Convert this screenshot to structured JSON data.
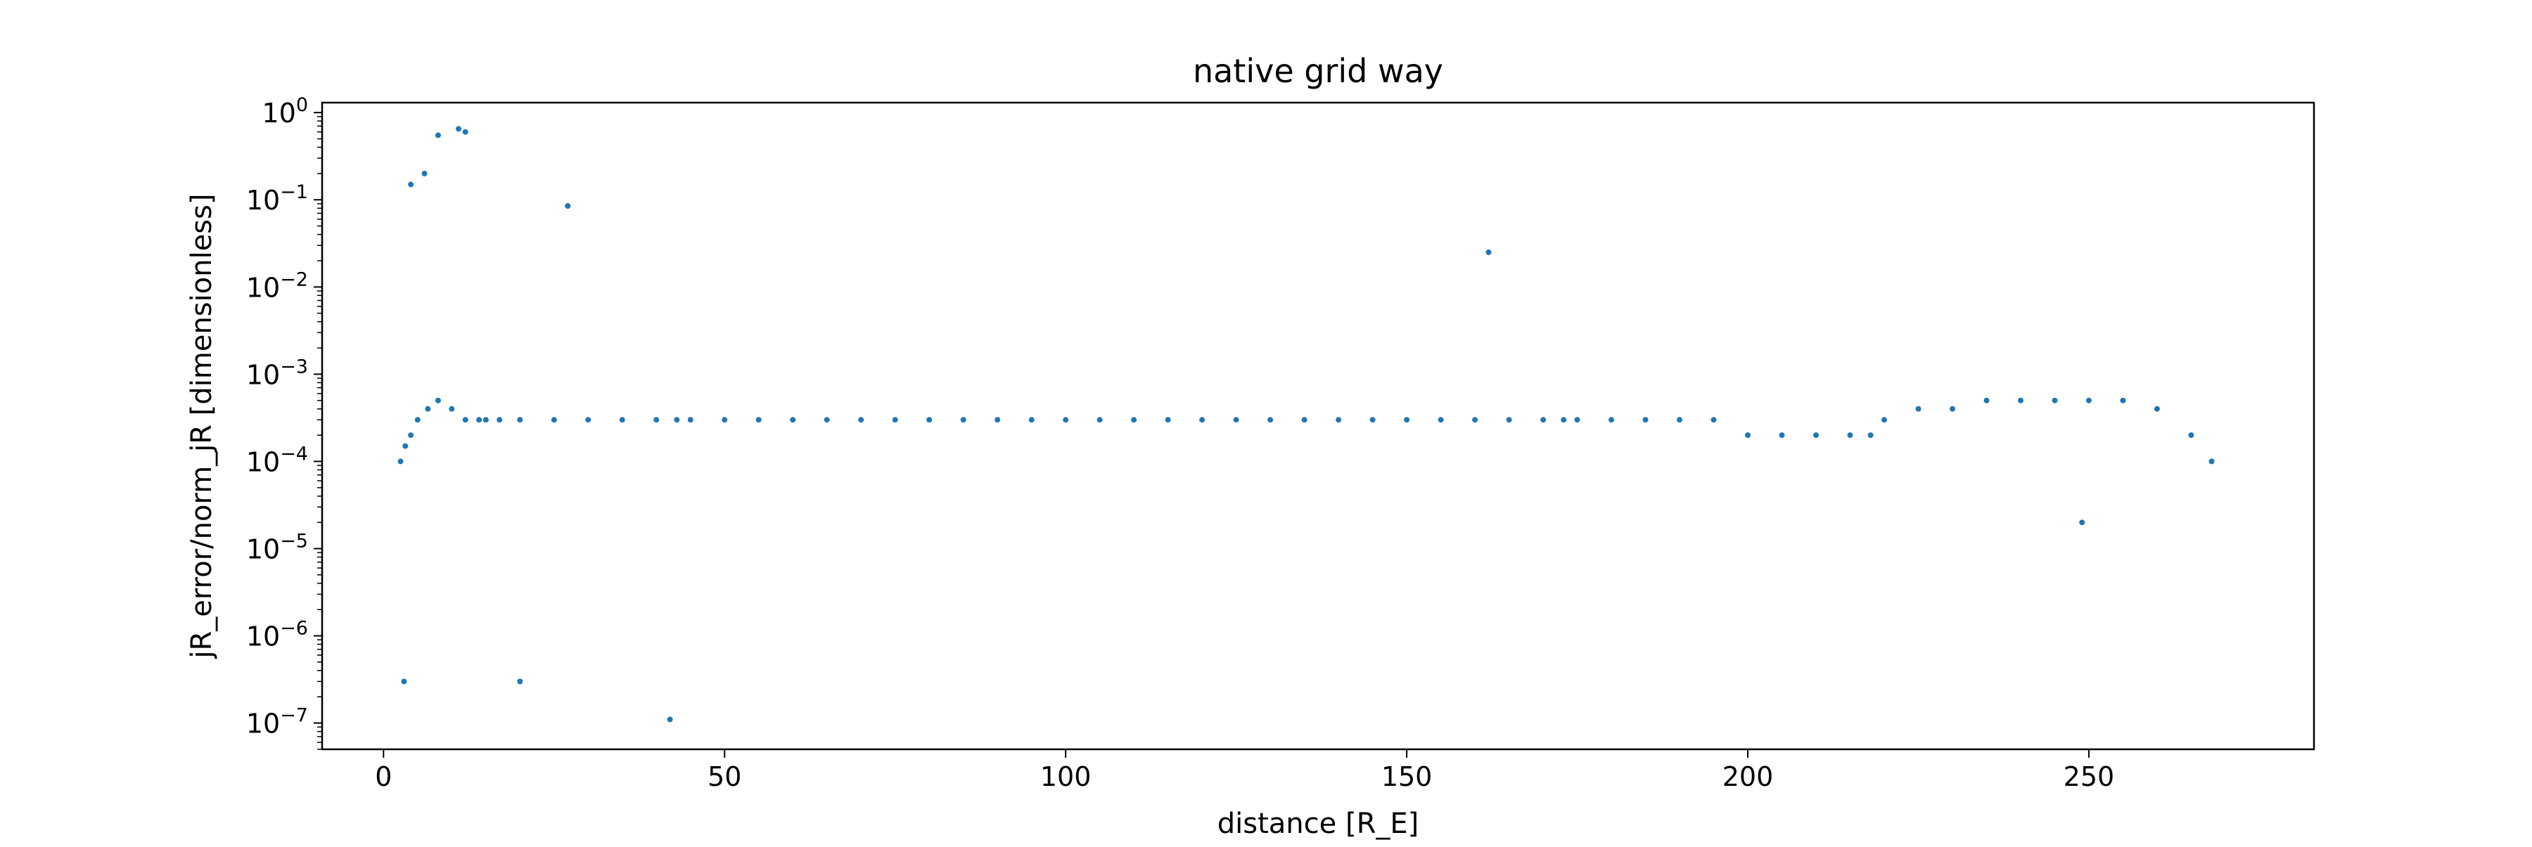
{
  "chart_data": {
    "type": "scatter",
    "title": "native grid way",
    "xlabel": "distance [R_E]",
    "ylabel": "jR_error/norm_jR [dimensionless]",
    "xlim": [
      -9,
      283
    ],
    "ylim": [
      5e-08,
      1.3
    ],
    "xscale": "linear",
    "yscale": "log",
    "xticks": [
      0,
      50,
      100,
      150,
      200,
      250
    ],
    "xtick_labels": [
      "0",
      "50",
      "100",
      "150",
      "200",
      "250"
    ],
    "yticks": [
      1e-07,
      1e-06,
      1e-05,
      0.0001,
      0.001,
      0.01,
      0.1,
      1
    ],
    "ytick_labels": [
      {
        "base": "10",
        "exp": "−7"
      },
      {
        "base": "10",
        "exp": "−6"
      },
      {
        "base": "10",
        "exp": "−5"
      },
      {
        "base": "10",
        "exp": "−4"
      },
      {
        "base": "10",
        "exp": "−3"
      },
      {
        "base": "10",
        "exp": "−2"
      },
      {
        "base": "10",
        "exp": "−1"
      },
      {
        "base": "10",
        "exp": "0"
      }
    ],
    "grid": false,
    "legend": "none",
    "marker_color": "#1f77b4",
    "series": [
      {
        "x": [
          2.5,
          3.2,
          4.0,
          5.0,
          6.5,
          8.0,
          10.0,
          12.0,
          14.0,
          15.0,
          17.0,
          20.0,
          25.0,
          30.0,
          35.0,
          40.0,
          43.0,
          45.0,
          50.0,
          55.0,
          60.0,
          65.0,
          70.0,
          75.0,
          80.0,
          85.0,
          90.0,
          95.0,
          100.0,
          105.0,
          110.0,
          115.0,
          120.0,
          125.0,
          130.0,
          135.0,
          140.0,
          145.0,
          150.0,
          155.0,
          160.0,
          165.0,
          170.0,
          173.0,
          175.0,
          180.0,
          185.0,
          190.0,
          195.0,
          200.0,
          205.0,
          210.0,
          215.0,
          218.0,
          220.0,
          225.0,
          230.0,
          235.0,
          240.0,
          245.0,
          250.0,
          255.0,
          260.0,
          265.0,
          268.0,
          42.0,
          20.0,
          12.0,
          8.0,
          11.0,
          4.0,
          6.0,
          3.0,
          27.0,
          249.0,
          162.0
        ],
        "y": [
          0.0001,
          0.00015,
          0.0002,
          0.0003,
          0.0004,
          0.0005,
          0.0004,
          0.0003,
          0.0003,
          0.0003,
          0.0003,
          0.0003,
          0.0003,
          0.0003,
          0.0003,
          0.0003,
          0.0003,
          0.0003,
          0.0003,
          0.0003,
          0.0003,
          0.0003,
          0.0003,
          0.0003,
          0.0003,
          0.0003,
          0.0003,
          0.0003,
          0.0003,
          0.0003,
          0.0003,
          0.0003,
          0.0003,
          0.0003,
          0.0003,
          0.0003,
          0.0003,
          0.0003,
          0.0003,
          0.0003,
          0.0003,
          0.0003,
          0.0003,
          0.0003,
          0.0003,
          0.0003,
          0.0003,
          0.0003,
          0.0003,
          0.0002,
          0.0002,
          0.0002,
          0.0002,
          0.0002,
          0.0003,
          0.0004,
          0.0004,
          0.0005,
          0.0005,
          0.0005,
          0.0005,
          0.0005,
          0.0004,
          0.0002,
          0.0001,
          1.1e-07,
          3e-07,
          0.6,
          0.55,
          0.65,
          0.15,
          0.2,
          3e-07,
          0.085,
          2e-05,
          0.025
        ]
      }
    ]
  }
}
